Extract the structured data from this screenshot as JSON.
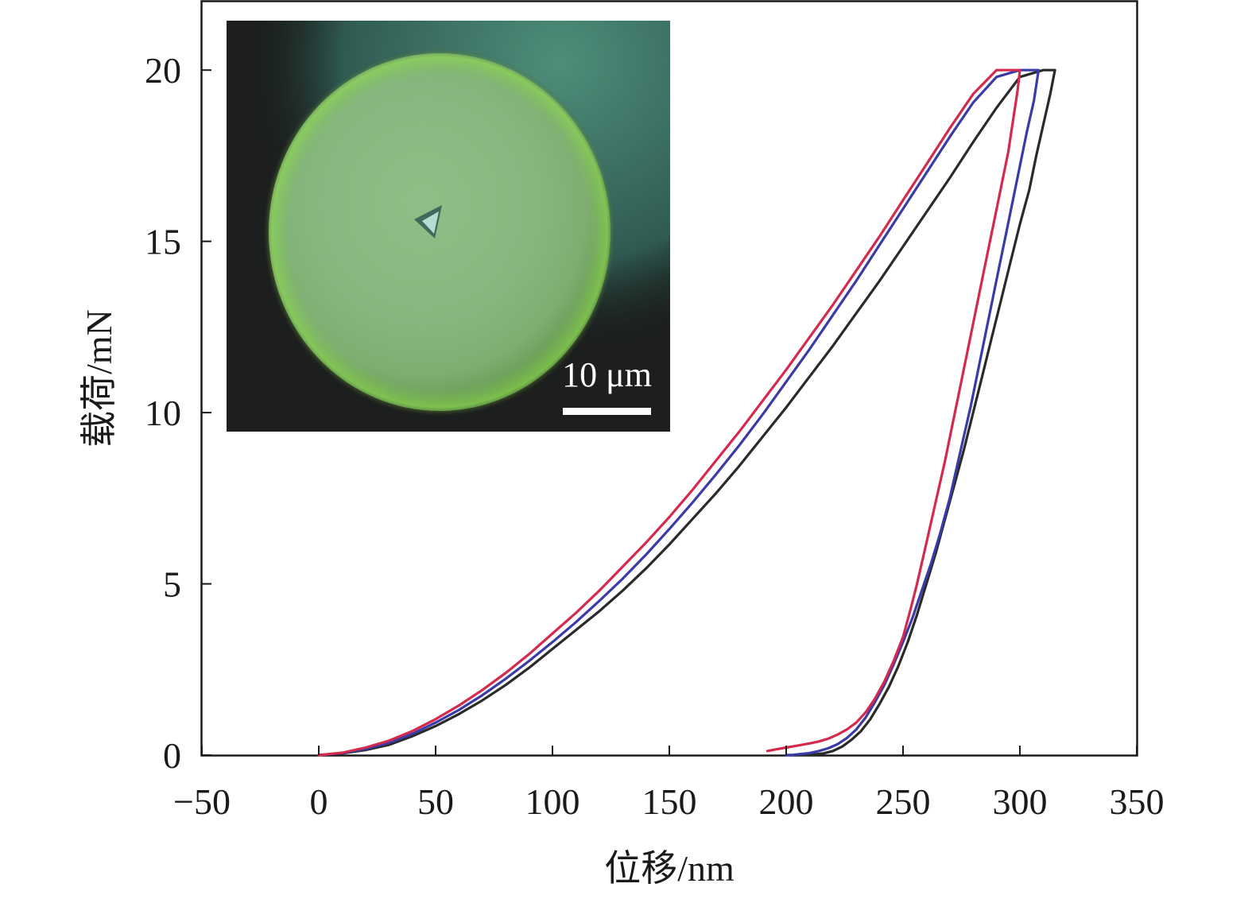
{
  "chart_data": {
    "type": "line",
    "xlabel": "位移/nm",
    "ylabel": "载荷/mN",
    "xlim": [
      -50,
      350
    ],
    "ylim": [
      0,
      22
    ],
    "xticks": [
      -50,
      0,
      50,
      100,
      150,
      200,
      250,
      300,
      350
    ],
    "yticks": [
      0,
      5,
      10,
      15,
      20
    ],
    "xtick_labels": [
      "−50",
      "0",
      "50",
      "100",
      "150",
      "200",
      "250",
      "300",
      "350"
    ],
    "ytick_labels": [
      "0",
      "5",
      "10",
      "15",
      "20"
    ],
    "grid": false,
    "legend": false,
    "series": [
      {
        "color": "#2a2a2a",
        "x": [
          0,
          10,
          20,
          30,
          40,
          50,
          60,
          70,
          80,
          90,
          100,
          110,
          120,
          130,
          140,
          150,
          160,
          170,
          180,
          190,
          200,
          210,
          220,
          230,
          240,
          250,
          260,
          270,
          280,
          290,
          300,
          310,
          315,
          313,
          310,
          307,
          304,
          300,
          296,
          292,
          288,
          284,
          280,
          276,
          272,
          268,
          264,
          260,
          256,
          252,
          248,
          244,
          240,
          236,
          232,
          228,
          224,
          220,
          216,
          212,
          208,
          205
        ],
        "y": [
          0,
          0.05,
          0.15,
          0.3,
          0.55,
          0.85,
          1.2,
          1.6,
          2.05,
          2.55,
          3.1,
          3.65,
          4.2,
          4.8,
          5.45,
          6.15,
          6.9,
          7.65,
          8.45,
          9.3,
          10.15,
          11.05,
          11.95,
          12.9,
          13.85,
          14.85,
          15.85,
          16.85,
          17.9,
          18.9,
          19.8,
          20,
          20,
          19.3,
          18.4,
          17.5,
          16.5,
          15.5,
          14.4,
          13.3,
          12.2,
          11.1,
          10,
          8.9,
          7.9,
          6.9,
          5.9,
          5,
          4.1,
          3.3,
          2.6,
          2,
          1.5,
          1.05,
          0.7,
          0.45,
          0.25,
          0.12,
          0.05,
          0.02,
          0.01,
          0
        ]
      },
      {
        "color": "#3a3aa8",
        "x": [
          0,
          10,
          20,
          30,
          40,
          50,
          60,
          70,
          80,
          90,
          100,
          110,
          120,
          130,
          140,
          150,
          160,
          170,
          180,
          190,
          200,
          210,
          220,
          230,
          240,
          250,
          260,
          270,
          280,
          290,
          300,
          308,
          306,
          303,
          300,
          297,
          294,
          291,
          288,
          285,
          282,
          279,
          276,
          273,
          270,
          266,
          262,
          258,
          254,
          250,
          246,
          242,
          238,
          234,
          230,
          226,
          222,
          218,
          214,
          210,
          206,
          203,
          200
        ],
        "y": [
          0,
          0.06,
          0.18,
          0.36,
          0.62,
          0.95,
          1.32,
          1.75,
          2.23,
          2.75,
          3.3,
          3.88,
          4.5,
          5.15,
          5.85,
          6.6,
          7.38,
          8.2,
          9.05,
          9.95,
          10.9,
          11.85,
          12.85,
          13.85,
          14.9,
          15.95,
          17.0,
          18.05,
          19.05,
          19.8,
          20,
          20,
          19.1,
          18.2,
          17.2,
          16.2,
          15.2,
          14.2,
          13.2,
          12.2,
          11.2,
          10.2,
          9.3,
          8.4,
          7.5,
          6.5,
          5.6,
          4.8,
          4.0,
          3.3,
          2.65,
          2.05,
          1.55,
          1.1,
          0.75,
          0.5,
          0.32,
          0.2,
          0.12,
          0.06,
          0.03,
          0.01,
          0
        ]
      },
      {
        "color": "#d42a4e",
        "x": [
          0,
          10,
          20,
          30,
          40,
          50,
          60,
          70,
          80,
          90,
          100,
          110,
          120,
          130,
          140,
          150,
          160,
          170,
          180,
          190,
          200,
          210,
          220,
          230,
          240,
          250,
          260,
          270,
          280,
          290,
          295,
          300,
          299,
          297,
          295,
          292,
          289,
          286,
          283,
          280,
          277,
          274,
          271,
          268,
          265,
          262,
          259,
          256,
          253,
          250,
          246,
          242,
          238,
          234,
          230,
          226,
          222,
          218,
          214,
          210,
          205,
          200,
          195,
          192
        ],
        "y": [
          0,
          0.07,
          0.22,
          0.42,
          0.7,
          1.05,
          1.45,
          1.9,
          2.4,
          2.95,
          3.55,
          4.15,
          4.8,
          5.5,
          6.2,
          6.95,
          7.75,
          8.6,
          9.45,
          10.35,
          11.25,
          12.2,
          13.15,
          14.15,
          15.15,
          16.2,
          17.25,
          18.3,
          19.3,
          20,
          20,
          20,
          19.4,
          18.5,
          17.6,
          16.6,
          15.6,
          14.6,
          13.6,
          12.6,
          11.6,
          10.6,
          9.6,
          8.6,
          7.7,
          6.8,
          5.9,
          5.0,
          4.2,
          3.45,
          2.75,
          2.15,
          1.65,
          1.25,
          0.95,
          0.75,
          0.6,
          0.48,
          0.4,
          0.34,
          0.28,
          0.22,
          0.16,
          0.12
        ]
      }
    ]
  },
  "inset": {
    "scale_bar_label": "10 μm"
  }
}
